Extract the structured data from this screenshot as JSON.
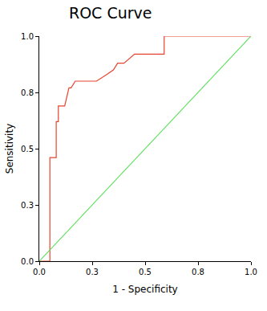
{
  "chart_data": {
    "type": "line",
    "title": "ROC Curve",
    "x_label": "1 - Specificity",
    "y_label": "Sensitivity",
    "xlim": [
      0,
      1
    ],
    "ylim": [
      0,
      1
    ],
    "xticks": [
      {
        "value": 0,
        "label": "0.0"
      },
      {
        "value": 0.25,
        "label": "0.3"
      },
      {
        "value": 0.5,
        "label": "0.5"
      },
      {
        "value": 0.75,
        "label": "0.8"
      },
      {
        "value": 1,
        "label": "1.0"
      }
    ],
    "yticks": [
      {
        "value": 0,
        "label": "0.0"
      },
      {
        "value": 0.25,
        "label": "0.3"
      },
      {
        "value": 0.5,
        "label": "0.5"
      },
      {
        "value": 0.75,
        "label": "0.8"
      },
      {
        "value": 1,
        "label": "1.0"
      }
    ],
    "grid": false,
    "series": [
      {
        "color": "#e8432f",
        "x": [
          0,
          0.05,
          0.05,
          0.08,
          0.08,
          0.09,
          0.09,
          0.12,
          0.14,
          0.15,
          0.17,
          0.27,
          0.32,
          0.35,
          0.37,
          0.4,
          0.45,
          0.59,
          0.59,
          1
        ],
        "values": [
          0,
          0,
          0.46,
          0.46,
          0.62,
          0.62,
          0.69,
          0.69,
          0.77,
          0.77,
          0.8,
          0.8,
          0.83,
          0.85,
          0.88,
          0.88,
          0.92,
          0.92,
          1,
          1
        ]
      },
      {
        "color": "#5ee05e",
        "x": [
          0,
          1
        ],
        "values": [
          0,
          1
        ]
      }
    ]
  }
}
